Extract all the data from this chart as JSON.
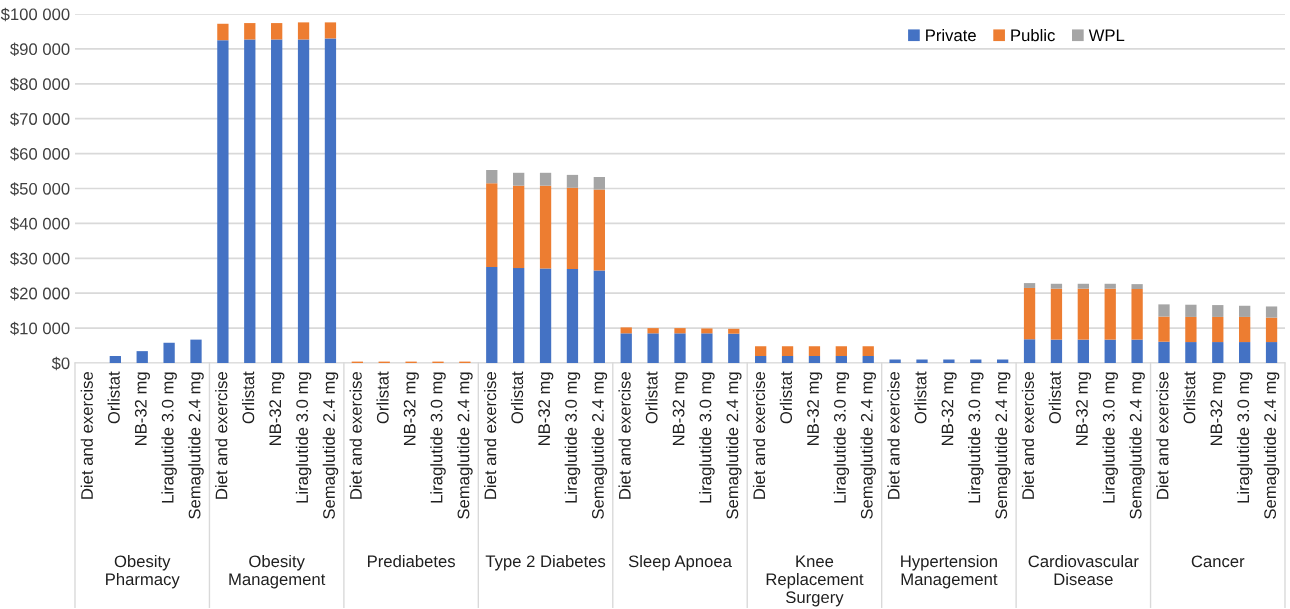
{
  "chart_data": {
    "type": "bar",
    "stacked": true,
    "grid": "y",
    "legend": "top right",
    "categories": [
      "Diet and exercise",
      "Orlistat",
      "NB-32 mg",
      "Liraglutide 3.0 mg",
      "Semaglutide 2.4 mg",
      "Diet and exercise",
      "Orlistat",
      "NB-32 mg",
      "Liraglutide 3.0 mg",
      "Semaglutide 2.4 mg",
      "Diet and exercise",
      "Orlistat",
      "NB-32 mg",
      "Liraglutide 3.0 mg",
      "Semaglutide 2.4 mg",
      "Diet and exercise",
      "Orlistat",
      "NB-32 mg",
      "Liraglutide 3.0 mg",
      "Semaglutide 2.4 mg",
      "Diet and exercise",
      "Orlistat",
      "NB-32 mg",
      "Liraglutide 3.0 mg",
      "Semaglutide 2.4 mg",
      "Diet and exercise",
      "Orlistat",
      "NB-32 mg",
      "Liraglutide 3.0 mg",
      "Semaglutide 2.4 mg",
      "Diet and exercise",
      "Orlistat",
      "NB-32 mg",
      "Liraglutide 3.0 mg",
      "Semaglutide 2.4 mg",
      "Diet and exercise",
      "Orlistat",
      "NB-32 mg",
      "Liraglutide 3.0 mg",
      "Semaglutide 2.4 mg",
      "Diet and exercise",
      "Orlistat",
      "NB-32 mg",
      "Liraglutide 3.0 mg",
      "Semaglutide 2.4 mg"
    ],
    "annotations": [
      "Obesity\nPharmacy",
      "Obesity\nManagement",
      "Prediabetes",
      "Type 2 Diabetes",
      "Sleep Apnoea",
      "Knee\nReplacement\nSurgery",
      "Hypertension\nManagement",
      "Cardiovascular\nDisease",
      "Cancer"
    ],
    "ylim": [
      0,
      100000
    ],
    "yticks": [
      {
        "value": 0,
        "label": "$0"
      },
      {
        "value": 10000,
        "label": "$10 000"
      },
      {
        "value": 20000,
        "label": "$20 000"
      },
      {
        "value": 30000,
        "label": "$30 000"
      },
      {
        "value": 40000,
        "label": "$40 000"
      },
      {
        "value": 50000,
        "label": "$50 000"
      },
      {
        "value": 60000,
        "label": "$60 000"
      },
      {
        "value": 70000,
        "label": "$70 000"
      },
      {
        "value": 80000,
        "label": "$80 000"
      },
      {
        "value": 90000,
        "label": "$90 000"
      },
      {
        "value": 100000,
        "label": "$100 000"
      }
    ],
    "series": [
      {
        "name": "Private",
        "color": "#4472c4",
        "values": [
          0,
          2000,
          3400,
          5800,
          6700,
          92500,
          92700,
          92700,
          92700,
          93000,
          0,
          0,
          0,
          0,
          0,
          27500,
          27200,
          27100,
          26900,
          26500,
          8500,
          8500,
          8500,
          8500,
          8400,
          2000,
          2000,
          2000,
          2000,
          2000,
          1000,
          1000,
          1000,
          1000,
          1000,
          6800,
          6700,
          6700,
          6700,
          6700,
          6100,
          6000,
          6000,
          6000,
          6000
        ]
      },
      {
        "name": "Public",
        "color": "#ed7d31",
        "values": [
          0,
          0,
          0,
          0,
          0,
          4700,
          4700,
          4700,
          4900,
          4600,
          400,
          400,
          400,
          400,
          400,
          24000,
          23600,
          23700,
          23300,
          23200,
          1700,
          1500,
          1500,
          1400,
          1400,
          2800,
          2800,
          2800,
          2800,
          2800,
          0,
          0,
          0,
          0,
          0,
          14700,
          14600,
          14600,
          14600,
          14500,
          7200,
          7200,
          7200,
          7200,
          7000
        ]
      },
      {
        "name": "WPL",
        "color": "#a5a5a5",
        "values": [
          0,
          0,
          0,
          0,
          0,
          0,
          0,
          0,
          0,
          0,
          0,
          0,
          0,
          0,
          0,
          3800,
          3700,
          3700,
          3700,
          3600,
          0,
          0,
          0,
          0,
          0,
          0,
          0,
          0,
          0,
          0,
          0,
          0,
          0,
          0,
          0,
          1400,
          1400,
          1400,
          1400,
          1400,
          3500,
          3500,
          3400,
          3200,
          3200
        ]
      }
    ]
  }
}
